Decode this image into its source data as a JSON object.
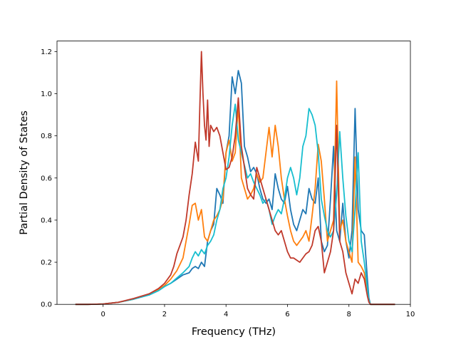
{
  "chart_data": {
    "type": "line",
    "xlabel": "Frequency (THz)",
    "ylabel": "Partial Density of States",
    "xlim": [
      -1.5,
      10
    ],
    "ylim": [
      0,
      1.25
    ],
    "x_ticks": [
      "0",
      "2",
      "4",
      "6",
      "8",
      "10"
    ],
    "y_ticks": [
      "0.0",
      "0.2",
      "0.4",
      "0.6",
      "0.8",
      "1.0",
      "1.2"
    ],
    "grid": false,
    "legend": "none",
    "series": [
      {
        "color": "#1f77b4",
        "x": [
          -0.9,
          -0.5,
          0,
          0.5,
          1.0,
          1.5,
          1.8,
          2.0,
          2.2,
          2.4,
          2.6,
          2.8,
          2.9,
          3.0,
          3.1,
          3.2,
          3.3,
          3.4,
          3.5,
          3.6,
          3.7,
          3.8,
          3.9,
          4.0,
          4.1,
          4.2,
          4.3,
          4.4,
          4.5,
          4.6,
          4.7,
          4.8,
          4.9,
          5.0,
          5.1,
          5.2,
          5.3,
          5.4,
          5.5,
          5.6,
          5.7,
          5.8,
          5.9,
          6.0,
          6.1,
          6.2,
          6.3,
          6.4,
          6.5,
          6.6,
          6.7,
          6.8,
          6.9,
          7.0,
          7.1,
          7.2,
          7.3,
          7.4,
          7.5,
          7.6,
          7.7,
          7.8,
          7.9,
          8.0,
          8.1,
          8.2,
          8.3,
          8.4,
          8.5,
          8.6,
          8.65,
          8.7,
          9.0,
          9.5
        ],
        "y": [
          0.0,
          0.0,
          0.002,
          0.01,
          0.025,
          0.045,
          0.065,
          0.085,
          0.1,
          0.12,
          0.14,
          0.15,
          0.17,
          0.18,
          0.17,
          0.2,
          0.18,
          0.3,
          0.35,
          0.38,
          0.55,
          0.52,
          0.48,
          0.72,
          0.8,
          1.08,
          1.0,
          1.11,
          1.05,
          0.75,
          0.7,
          0.63,
          0.65,
          0.62,
          0.55,
          0.5,
          0.48,
          0.5,
          0.45,
          0.62,
          0.55,
          0.5,
          0.48,
          0.56,
          0.45,
          0.38,
          0.35,
          0.4,
          0.45,
          0.43,
          0.55,
          0.5,
          0.48,
          0.6,
          0.3,
          0.25,
          0.28,
          0.5,
          0.75,
          0.35,
          0.3,
          0.48,
          0.3,
          0.22,
          0.35,
          0.93,
          0.45,
          0.35,
          0.33,
          0.12,
          0.03,
          0.0,
          0.0,
          0.0
        ]
      },
      {
        "color": "#ff7f0e",
        "x": [
          -0.9,
          -0.5,
          0,
          0.5,
          1.0,
          1.5,
          1.8,
          2.0,
          2.2,
          2.4,
          2.6,
          2.7,
          2.8,
          2.9,
          3.0,
          3.1,
          3.2,
          3.3,
          3.4,
          3.5,
          3.6,
          3.7,
          3.8,
          3.9,
          4.0,
          4.1,
          4.2,
          4.3,
          4.4,
          4.5,
          4.6,
          4.7,
          4.8,
          4.9,
          5.0,
          5.1,
          5.2,
          5.3,
          5.4,
          5.5,
          5.6,
          5.7,
          5.8,
          5.9,
          6.0,
          6.1,
          6.2,
          6.3,
          6.4,
          6.5,
          6.6,
          6.7,
          6.8,
          6.9,
          7.0,
          7.1,
          7.2,
          7.3,
          7.4,
          7.5,
          7.6,
          7.7,
          7.8,
          7.9,
          8.0,
          8.1,
          8.2,
          8.3,
          8.4,
          8.5,
          8.6,
          8.65,
          8.7,
          9.0,
          9.5
        ],
        "y": [
          0.0,
          0.0,
          0.002,
          0.01,
          0.025,
          0.05,
          0.07,
          0.09,
          0.12,
          0.16,
          0.22,
          0.3,
          0.38,
          0.47,
          0.48,
          0.4,
          0.45,
          0.32,
          0.3,
          0.35,
          0.4,
          0.42,
          0.45,
          0.5,
          0.72,
          0.78,
          0.68,
          0.72,
          0.95,
          0.6,
          0.55,
          0.5,
          0.52,
          0.55,
          0.62,
          0.58,
          0.6,
          0.72,
          0.84,
          0.7,
          0.85,
          0.75,
          0.6,
          0.5,
          0.42,
          0.35,
          0.3,
          0.28,
          0.3,
          0.32,
          0.35,
          0.3,
          0.42,
          0.55,
          0.76,
          0.68,
          0.5,
          0.3,
          0.35,
          0.4,
          1.06,
          0.35,
          0.4,
          0.3,
          0.25,
          0.2,
          0.7,
          0.2,
          0.18,
          0.15,
          0.05,
          0.02,
          0.0,
          0.0,
          0.0
        ]
      },
      {
        "color": "#17becf",
        "x": [
          -0.9,
          -0.5,
          0,
          0.5,
          1.0,
          1.5,
          1.8,
          2.0,
          2.2,
          2.4,
          2.6,
          2.8,
          2.9,
          3.0,
          3.1,
          3.2,
          3.3,
          3.4,
          3.5,
          3.6,
          3.7,
          3.8,
          3.9,
          4.0,
          4.1,
          4.2,
          4.3,
          4.4,
          4.5,
          4.6,
          4.7,
          4.8,
          4.9,
          5.0,
          5.1,
          5.2,
          5.3,
          5.4,
          5.5,
          5.6,
          5.7,
          5.8,
          5.9,
          6.0,
          6.1,
          6.2,
          6.3,
          6.4,
          6.5,
          6.6,
          6.7,
          6.8,
          6.9,
          7.0,
          7.1,
          7.2,
          7.3,
          7.4,
          7.5,
          7.6,
          7.7,
          7.8,
          7.9,
          8.0,
          8.1,
          8.2,
          8.3,
          8.4,
          8.5,
          8.6,
          8.65,
          8.7,
          9.0,
          9.5
        ],
        "y": [
          0.0,
          0.0,
          0.002,
          0.01,
          0.025,
          0.045,
          0.065,
          0.085,
          0.1,
          0.125,
          0.15,
          0.18,
          0.22,
          0.25,
          0.23,
          0.26,
          0.24,
          0.28,
          0.3,
          0.33,
          0.4,
          0.45,
          0.55,
          0.6,
          0.7,
          0.85,
          0.95,
          0.78,
          0.72,
          0.66,
          0.6,
          0.62,
          0.58,
          0.55,
          0.52,
          0.48,
          0.5,
          0.45,
          0.38,
          0.42,
          0.45,
          0.43,
          0.5,
          0.6,
          0.65,
          0.6,
          0.52,
          0.6,
          0.75,
          0.8,
          0.93,
          0.9,
          0.85,
          0.72,
          0.5,
          0.42,
          0.35,
          0.32,
          0.35,
          0.52,
          0.82,
          0.6,
          0.42,
          0.3,
          0.25,
          0.45,
          0.72,
          0.3,
          0.2,
          0.08,
          0.02,
          0.0,
          0.0,
          0.0
        ]
      },
      {
        "color": "#c0392b",
        "x": [
          -0.9,
          -0.5,
          0,
          0.5,
          1.0,
          1.5,
          1.8,
          2.0,
          2.2,
          2.3,
          2.4,
          2.5,
          2.6,
          2.7,
          2.8,
          2.9,
          3.0,
          3.1,
          3.15,
          3.2,
          3.25,
          3.3,
          3.35,
          3.4,
          3.45,
          3.5,
          3.6,
          3.7,
          3.8,
          3.9,
          4.0,
          4.1,
          4.2,
          4.3,
          4.4,
          4.5,
          4.6,
          4.7,
          4.8,
          4.9,
          5.0,
          5.1,
          5.2,
          5.3,
          5.4,
          5.5,
          5.6,
          5.7,
          5.8,
          5.9,
          6.0,
          6.1,
          6.2,
          6.3,
          6.4,
          6.5,
          6.6,
          6.7,
          6.8,
          6.9,
          7.0,
          7.1,
          7.2,
          7.3,
          7.4,
          7.5,
          7.6,
          7.7,
          7.8,
          7.9,
          8.0,
          8.1,
          8.2,
          8.3,
          8.4,
          8.5,
          8.6,
          8.65,
          8.7,
          9.0,
          9.5
        ],
        "y": [
          0.0,
          0.0,
          0.002,
          0.01,
          0.028,
          0.05,
          0.075,
          0.1,
          0.14,
          0.18,
          0.24,
          0.28,
          0.32,
          0.4,
          0.52,
          0.62,
          0.77,
          0.68,
          0.95,
          1.2,
          1.0,
          0.85,
          0.78,
          0.97,
          0.75,
          0.85,
          0.82,
          0.84,
          0.8,
          0.72,
          0.64,
          0.65,
          0.7,
          0.8,
          0.98,
          0.75,
          0.65,
          0.55,
          0.52,
          0.5,
          0.65,
          0.6,
          0.55,
          0.5,
          0.45,
          0.4,
          0.35,
          0.33,
          0.35,
          0.3,
          0.25,
          0.22,
          0.22,
          0.21,
          0.2,
          0.22,
          0.24,
          0.25,
          0.28,
          0.35,
          0.37,
          0.3,
          0.15,
          0.2,
          0.25,
          0.35,
          0.85,
          0.3,
          0.25,
          0.15,
          0.1,
          0.05,
          0.12,
          0.1,
          0.15,
          0.12,
          0.04,
          0.01,
          0.0,
          0.0,
          0.0
        ]
      }
    ]
  }
}
